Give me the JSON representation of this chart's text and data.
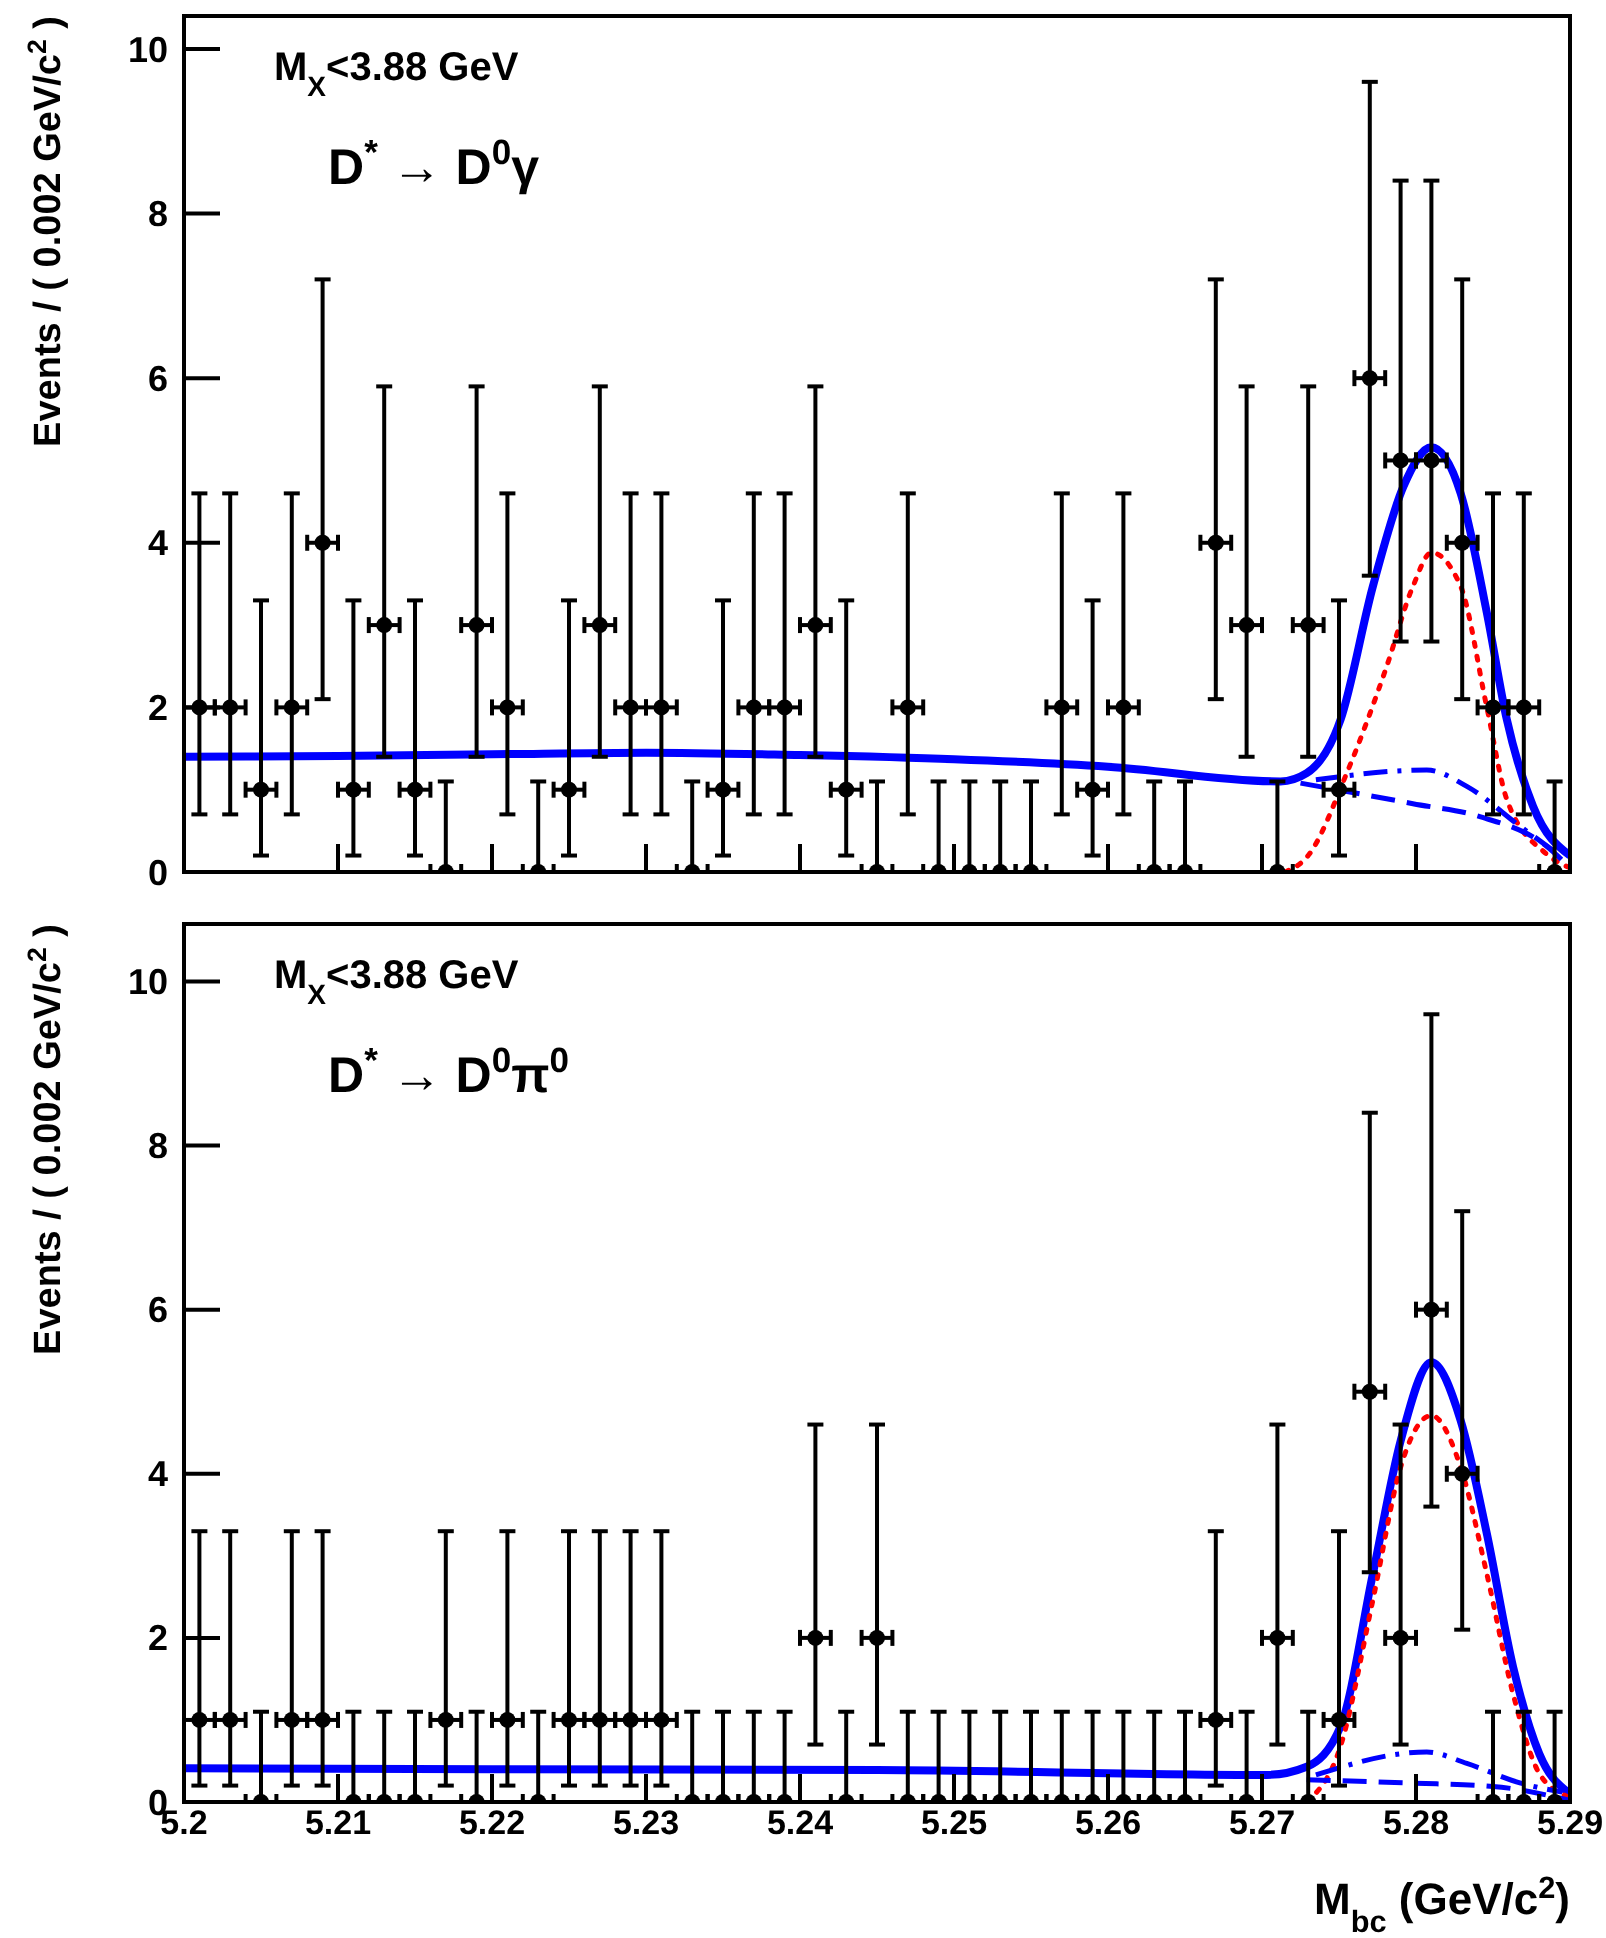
{
  "chart_data": [
    {
      "type": "scatter",
      "ylabel": "Events / ( 0.002 GeV/c$^{2}$ )",
      "annotations": [
        "M$_{X}$<3.88 GeV",
        "D$^{*}$ → D$^{0}$γ"
      ],
      "xlim": [
        5.2,
        5.29
      ],
      "xticks": [
        5.2,
        5.21,
        5.22,
        5.23,
        5.24,
        5.25,
        5.26,
        5.27,
        5.28,
        5.29
      ],
      "ylim": [
        0,
        10.4
      ],
      "yticks": [
        0,
        2,
        4,
        6,
        8,
        10
      ],
      "tick_labels": "y",
      "x": [
        5.201,
        5.203,
        5.205,
        5.207,
        5.209,
        5.211,
        5.213,
        5.215,
        5.217,
        5.219,
        5.221,
        5.223,
        5.225,
        5.227,
        5.229,
        5.231,
        5.233,
        5.235,
        5.237,
        5.239,
        5.241,
        5.243,
        5.245,
        5.247,
        5.249,
        5.251,
        5.253,
        5.255,
        5.257,
        5.259,
        5.261,
        5.263,
        5.265,
        5.267,
        5.269,
        5.271,
        5.273,
        5.275,
        5.277,
        5.279,
        5.281,
        5.283,
        5.285,
        5.287,
        5.289
      ],
      "series": [
        {
          "marker": "circle",
          "color": "#000000",
          "values": [
            2,
            2,
            1,
            2,
            4,
            1,
            3,
            1,
            0,
            3,
            2,
            0,
            1,
            3,
            2,
            2,
            0,
            1,
            2,
            2,
            3,
            1,
            0,
            2,
            0,
            0,
            0,
            0,
            2,
            1,
            2,
            0,
            0,
            4,
            3,
            0,
            3,
            1,
            6,
            5,
            5,
            4,
            2,
            2,
            0
          ],
          "errors": [
            [
              0.7,
              4.6
            ],
            [
              0.7,
              4.6
            ],
            [
              0.2,
              3.3
            ],
            [
              0.7,
              4.6
            ],
            [
              2.1,
              7.2
            ],
            [
              0.2,
              3.3
            ],
            [
              1.4,
              5.9
            ],
            [
              0.2,
              3.3
            ],
            [
              0,
              1.1
            ],
            [
              1.4,
              5.9
            ],
            [
              0.7,
              4.6
            ],
            [
              0,
              1.1
            ],
            [
              0.2,
              3.3
            ],
            [
              1.4,
              5.9
            ],
            [
              0.7,
              4.6
            ],
            [
              0.7,
              4.6
            ],
            [
              0,
              1.1
            ],
            [
              0.2,
              3.3
            ],
            [
              0.7,
              4.6
            ],
            [
              0.7,
              4.6
            ],
            [
              1.4,
              5.9
            ],
            [
              0.2,
              3.3
            ],
            [
              0,
              1.1
            ],
            [
              0.7,
              4.6
            ],
            [
              0,
              1.1
            ],
            [
              0,
              1.1
            ],
            [
              0,
              1.1
            ],
            [
              0,
              1.1
            ],
            [
              0.7,
              4.6
            ],
            [
              0.2,
              3.3
            ],
            [
              0.7,
              4.6
            ],
            [
              0,
              1.1
            ],
            [
              0,
              1.1
            ],
            [
              2.1,
              7.2
            ],
            [
              1.4,
              5.9
            ],
            [
              0,
              1.1
            ],
            [
              1.4,
              5.9
            ],
            [
              0.2,
              3.3
            ],
            [
              3.6,
              9.6
            ],
            [
              2.8,
              8.4
            ],
            [
              2.8,
              8.4
            ],
            [
              2.1,
              7.2
            ],
            [
              0.7,
              4.6
            ],
            [
              0.7,
              4.6
            ],
            [
              0,
              1.1
            ]
          ],
          "xerrors": [
            0.001,
            0.001,
            0.001,
            0.001,
            0.001,
            0.001,
            0.001,
            0.001,
            0.001,
            0.001,
            0.001,
            0.001,
            0.001,
            0.001,
            0.001,
            0.001,
            0.001,
            0.001,
            0.001,
            0.001,
            0.001,
            0.001,
            0.001,
            0.001,
            0.001,
            0.001,
            0.001,
            0.001,
            0.001,
            0.001,
            0.001,
            0.001,
            0.001,
            0.001,
            0.001,
            0.001,
            0.001,
            0.001,
            0.001,
            0.001,
            0.001,
            0.001,
            0.001,
            0.001,
            0.001
          ]
        },
        {
          "type": "line",
          "color": "#0000ff",
          "line_style": "solid",
          "x": [
            5.2,
            5.21,
            5.22,
            5.23,
            5.24,
            5.25,
            5.26,
            5.2712,
            5.2729,
            5.2751,
            5.2772,
            5.2792,
            5.281,
            5.2829,
            5.2846,
            5.2859,
            5.2876,
            5.29
          ],
          "values": [
            1.4,
            1.41,
            1.43,
            1.45,
            1.42,
            1.37,
            1.28,
            1.1,
            1.2,
            1.85,
            3.47,
            4.69,
            5.16,
            4.6,
            3.15,
            1.85,
            0.8,
            0.2
          ]
        },
        {
          "type": "line",
          "color": "#ff0000",
          "line_style": "dotted",
          "x": [
            5.2715,
            5.273,
            5.2755,
            5.2781,
            5.2798,
            5.281,
            5.2829,
            5.2846,
            5.2859,
            5.2884,
            5.29
          ],
          "values": [
            0,
            0.2,
            1.2,
            2.5,
            3.47,
            3.88,
            3.47,
            2.0,
            0.88,
            0.23,
            0.05
          ]
        },
        {
          "type": "line",
          "color": "#0000ff",
          "line_style": "dashed",
          "x": [
            5.2725,
            5.2798,
            5.2842,
            5.2885,
            5.29
          ],
          "values": [
            1.08,
            0.83,
            0.67,
            0.31,
            0.05
          ]
        },
        {
          "type": "line",
          "color": "#0000ff",
          "line_style": "dashdot",
          "x": [
            5.2735,
            5.2807,
            5.2833,
            5.2868,
            5.2895
          ],
          "values": [
            1.12,
            1.24,
            1.04,
            0.55,
            0.18
          ]
        }
      ]
    },
    {
      "type": "scatter",
      "xlabel": "M$_{bc}$ (GeV/c$^{2}$)",
      "ylabel": "Events / ( 0.002 GeV/c$^{2}$ )",
      "annotations": [
        "M$_{X}$<3.88 GeV",
        "D$^{*}$ → D$^{0}$π$^{0}$"
      ],
      "xlim": [
        5.2,
        5.29
      ],
      "xticks": [
        5.2,
        5.21,
        5.22,
        5.23,
        5.24,
        5.25,
        5.26,
        5.27,
        5.28,
        5.29
      ],
      "ylim": [
        0,
        10.7
      ],
      "yticks": [
        0,
        2,
        4,
        6,
        8,
        10
      ],
      "x": [
        5.201,
        5.203,
        5.205,
        5.207,
        5.209,
        5.211,
        5.213,
        5.215,
        5.217,
        5.219,
        5.221,
        5.223,
        5.225,
        5.227,
        5.229,
        5.231,
        5.233,
        5.235,
        5.237,
        5.239,
        5.241,
        5.243,
        5.245,
        5.247,
        5.249,
        5.251,
        5.253,
        5.255,
        5.257,
        5.259,
        5.261,
        5.263,
        5.265,
        5.267,
        5.269,
        5.271,
        5.273,
        5.275,
        5.277,
        5.279,
        5.281,
        5.283,
        5.285,
        5.287,
        5.289
      ],
      "series": [
        {
          "marker": "circle",
          "color": "#000000",
          "values": [
            1,
            1,
            0,
            1,
            1,
            0,
            0,
            0,
            1,
            0,
            1,
            0,
            1,
            1,
            1,
            1,
            0,
            0,
            0,
            0,
            2,
            0,
            2,
            0,
            0,
            0,
            0,
            0,
            0,
            0,
            0,
            0,
            0,
            1,
            0,
            2,
            0,
            1,
            5,
            2,
            6,
            4,
            0,
            0,
            0
          ],
          "errors": [
            [
              0.2,
              3.3
            ],
            [
              0.2,
              3.3
            ],
            [
              0,
              1.1
            ],
            [
              0.2,
              3.3
            ],
            [
              0.2,
              3.3
            ],
            [
              0,
              1.1
            ],
            [
              0,
              1.1
            ],
            [
              0,
              1.1
            ],
            [
              0.2,
              3.3
            ],
            [
              0,
              1.1
            ],
            [
              0.2,
              3.3
            ],
            [
              0,
              1.1
            ],
            [
              0.2,
              3.3
            ],
            [
              0.2,
              3.3
            ],
            [
              0.2,
              3.3
            ],
            [
              0.2,
              3.3
            ],
            [
              0,
              1.1
            ],
            [
              0,
              1.1
            ],
            [
              0,
              1.1
            ],
            [
              0,
              1.1
            ],
            [
              0.7,
              4.6
            ],
            [
              0,
              1.1
            ],
            [
              0.7,
              4.6
            ],
            [
              0,
              1.1
            ],
            [
              0,
              1.1
            ],
            [
              0,
              1.1
            ],
            [
              0,
              1.1
            ],
            [
              0,
              1.1
            ],
            [
              0,
              1.1
            ],
            [
              0,
              1.1
            ],
            [
              0,
              1.1
            ],
            [
              0,
              1.1
            ],
            [
              0,
              1.1
            ],
            [
              0.2,
              3.3
            ],
            [
              0,
              1.1
            ],
            [
              0.7,
              4.6
            ],
            [
              0,
              1.1
            ],
            [
              0.2,
              3.3
            ],
            [
              2.8,
              8.4
            ],
            [
              0.7,
              4.6
            ],
            [
              3.6,
              9.6
            ],
            [
              2.1,
              7.2
            ],
            [
              0,
              1.1
            ],
            [
              0,
              1.1
            ],
            [
              0,
              1.1
            ]
          ],
          "xerrors": [
            0.001,
            0.001,
            0.001,
            0.001,
            0.001,
            0.001,
            0.001,
            0.001,
            0.001,
            0.001,
            0.001,
            0.001,
            0.001,
            0.001,
            0.001,
            0.001,
            0.001,
            0.001,
            0.001,
            0.001,
            0.001,
            0.001,
            0.001,
            0.001,
            0.001,
            0.001,
            0.001,
            0.001,
            0.001,
            0.001,
            0.001,
            0.001,
            0.001,
            0.001,
            0.001,
            0.001,
            0.001,
            0.001,
            0.001,
            0.001,
            0.001,
            0.001,
            0.001,
            0.001,
            0.001
          ]
        },
        {
          "type": "line",
          "color": "#0000ff",
          "line_style": "solid",
          "x": [
            5.2,
            5.22,
            5.245,
            5.2703,
            5.2729,
            5.2751,
            5.2772,
            5.279,
            5.281,
            5.2829,
            5.2846,
            5.2863,
            5.288,
            5.29
          ],
          "values": [
            0.41,
            0.4,
            0.39,
            0.33,
            0.43,
            0.92,
            2.78,
            4.4,
            5.36,
            4.65,
            3.27,
            1.65,
            0.59,
            0.1
          ]
        },
        {
          "type": "line",
          "color": "#ff0000",
          "line_style": "dotted",
          "x": [
            5.2729,
            5.2751,
            5.2772,
            5.279,
            5.281,
            5.2829,
            5.2846,
            5.2863,
            5.288,
            5.2898
          ],
          "values": [
            0,
            0.68,
            2.46,
            4.08,
            4.71,
            4.08,
            2.78,
            1.32,
            0.35,
            0.07
          ]
        },
        {
          "type": "line",
          "color": "#0000ff",
          "line_style": "dashed",
          "x": [
            5.2729,
            5.2798,
            5.285,
            5.29
          ],
          "values": [
            0.27,
            0.23,
            0.19,
            0.02
          ]
        },
        {
          "type": "line",
          "color": "#0000ff",
          "line_style": "dashdot",
          "x": [
            5.2735,
            5.2807,
            5.2833,
            5.2868,
            5.2895
          ],
          "values": [
            0.33,
            0.61,
            0.47,
            0.23,
            0.12
          ]
        }
      ]
    }
  ]
}
